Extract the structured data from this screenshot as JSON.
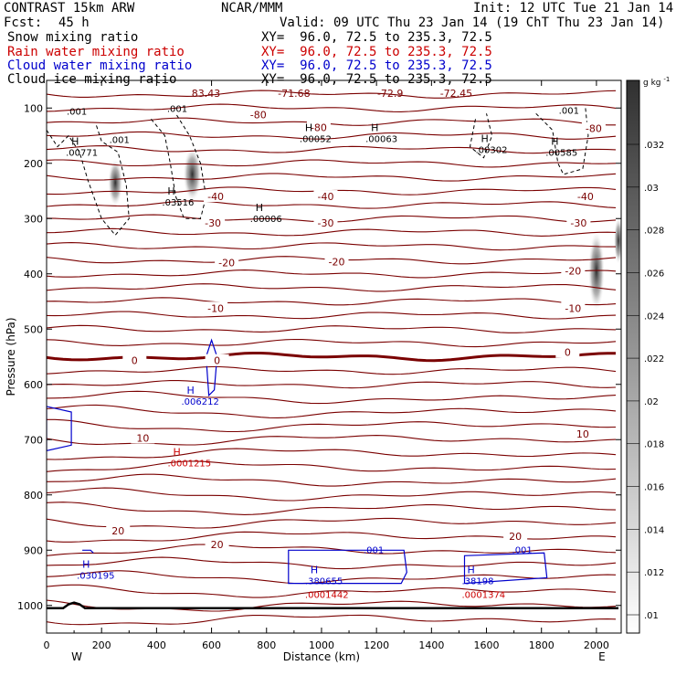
{
  "header": {
    "model": "CONTRAST 15km ARW",
    "org": "NCAR/MMM",
    "init": "Init: 12 UTC Tue 21 Jan 14",
    "fcst_label": "Fcst:",
    "fcst_value": "45 h",
    "valid": "Valid: 09 UTC Thu 23 Jan 14 (19 ChT Thu 23 Jan 14)"
  },
  "legend": [
    {
      "name": "Snow mixing ratio",
      "color": "#000000",
      "xy": "XY=  96.0, 72.5 to 235.3, 72.5"
    },
    {
      "name": "Rain water mixing ratio",
      "color": "#cc0000",
      "xy": "XY=  96.0, 72.5 to 235.3, 72.5"
    },
    {
      "name": "Cloud water mixing ratio",
      "color": "#0000cc",
      "xy": "XY=  96.0, 72.5 to 235.3, 72.5"
    },
    {
      "name": "Cloud ice mixing ratio",
      "color": "#000000",
      "xy": "XY=  96.0, 72.5 to 235.3, 72.5"
    }
  ],
  "colors": {
    "temperature": "#7a0000",
    "rain": "#cc0000",
    "cloud": "#0000cc",
    "snow": "#000000",
    "terrain": "#000000"
  },
  "chart_data": {
    "type": "cross-section",
    "xlabel": "Distance (km)",
    "ylabel": "Pressure (hPa)",
    "xlim": [
      0,
      2090
    ],
    "ylim": [
      1050,
      50
    ],
    "y_reversed": true,
    "x_ticks": [
      0,
      200,
      400,
      600,
      800,
      1000,
      1200,
      1400,
      1600,
      1800,
      2000
    ],
    "y_ticks": [
      100,
      200,
      300,
      400,
      500,
      600,
      700,
      800,
      900,
      1000
    ],
    "x_end_labels": {
      "left": "W",
      "right": "E"
    },
    "colorbar": {
      "unit": "g kg",
      "unit_exp": "-1",
      "ticks": [
        ".032",
        ".03",
        ".028",
        ".026",
        ".024",
        ".022",
        ".02",
        ".018",
        ".016",
        ".014",
        ".012",
        ".01"
      ]
    },
    "temperature_contours": [
      {
        "label": "-80",
        "p": 112,
        "at_x": 770
      },
      {
        "label": "-80",
        "p": 135,
        "at_x": 990
      },
      {
        "label": "-80",
        "p": 137,
        "at_x": 1990
      },
      {
        "label": "-40",
        "p": 260,
        "at_x": 615
      },
      {
        "label": "-40",
        "p": 260,
        "at_x": 1015
      },
      {
        "label": "-40",
        "p": 260,
        "at_x": 1960
      },
      {
        "label": "-30",
        "p": 308,
        "at_x": 605
      },
      {
        "label": "-30",
        "p": 308,
        "at_x": 1015
      },
      {
        "label": "-30",
        "p": 308,
        "at_x": 1935
      },
      {
        "label": "-20",
        "p": 380,
        "at_x": 655
      },
      {
        "label": "-20",
        "p": 378,
        "at_x": 1055
      },
      {
        "label": "-20",
        "p": 395,
        "at_x": 1915
      },
      {
        "label": "-10",
        "p": 462,
        "at_x": 615
      },
      {
        "label": "-10",
        "p": 462,
        "at_x": 1915
      },
      {
        "label": "0",
        "p": 557,
        "at_x": 320
      },
      {
        "label": "0",
        "p": 557,
        "at_x": 620
      },
      {
        "label": "0",
        "p": 542,
        "at_x": 1895
      },
      {
        "label": "10",
        "p": 697,
        "at_x": 350
      },
      {
        "label": "10",
        "p": 690,
        "at_x": 1950
      },
      {
        "label": "20",
        "p": 865,
        "at_x": 260
      },
      {
        "label": "20",
        "p": 890,
        "at_x": 620
      },
      {
        "label": "20",
        "p": 875,
        "at_x": 1705
      }
    ],
    "temperature_top_labels": [
      {
        "label": "-71.68",
        "at_x": 900
      },
      {
        "label": "-72.9",
        "at_x": 1250
      },
      {
        "label": "-72.45",
        "at_x": 1490
      },
      {
        "label": "83.43",
        "at_x": 580
      }
    ],
    "extrema": [
      {
        "mark": "H",
        "value": ".00771",
        "x": 90,
        "p": 170,
        "color": "snow"
      },
      {
        "mark": "H",
        "value": ".03516",
        "x": 440,
        "p": 260,
        "color": "snow"
      },
      {
        "mark": "H",
        "value": ".00006",
        "x": 760,
        "p": 290,
        "color": "snow"
      },
      {
        "mark": "H",
        "value": ".00052",
        "x": 940,
        "p": 145,
        "color": "snow"
      },
      {
        "mark": "H",
        "value": ".00063",
        "x": 1180,
        "p": 145,
        "color": "snow"
      },
      {
        "mark": "H",
        "value": ".00302",
        "x": 1580,
        "p": 165,
        "color": "snow"
      },
      {
        "mark": "H",
        "value": ".00585",
        "x": 1835,
        "p": 170,
        "color": "snow"
      },
      {
        "mark": "H",
        "value": ".006212",
        "x": 510,
        "p": 620,
        "color": "cloud"
      },
      {
        "mark": "H",
        "value": ".030195",
        "x": 130,
        "p": 935,
        "color": "cloud"
      },
      {
        "mark": "H",
        "value": ".380655",
        "x": 960,
        "p": 945,
        "color": "cloud"
      },
      {
        "mark": "H",
        "value": ".38198",
        "x": 1530,
        "p": 945,
        "color": "cloud"
      },
      {
        "mark": "H",
        "value": ".0001215",
        "x": 460,
        "p": 732,
        "color": "rain"
      },
      {
        "mark": "",
        "value": ".0001442",
        "x": 960,
        "p": 970,
        "color": "rain"
      },
      {
        "mark": "",
        "value": ".0001374",
        "x": 1530,
        "p": 970,
        "color": "rain"
      }
    ],
    "snow_contour_labels": [
      {
        "label": ".001",
        "x": 110,
        "p": 112
      },
      {
        "label": ".001",
        "x": 475,
        "p": 107
      },
      {
        "label": ".001",
        "x": 265,
        "p": 163
      },
      {
        "label": ".001",
        "x": 1900,
        "p": 110
      }
    ],
    "cloud_contour_labels": [
      {
        "label": ".001",
        "x": 1190,
        "p": 905
      },
      {
        "label": ".001",
        "x": 1730,
        "p": 905
      }
    ]
  }
}
